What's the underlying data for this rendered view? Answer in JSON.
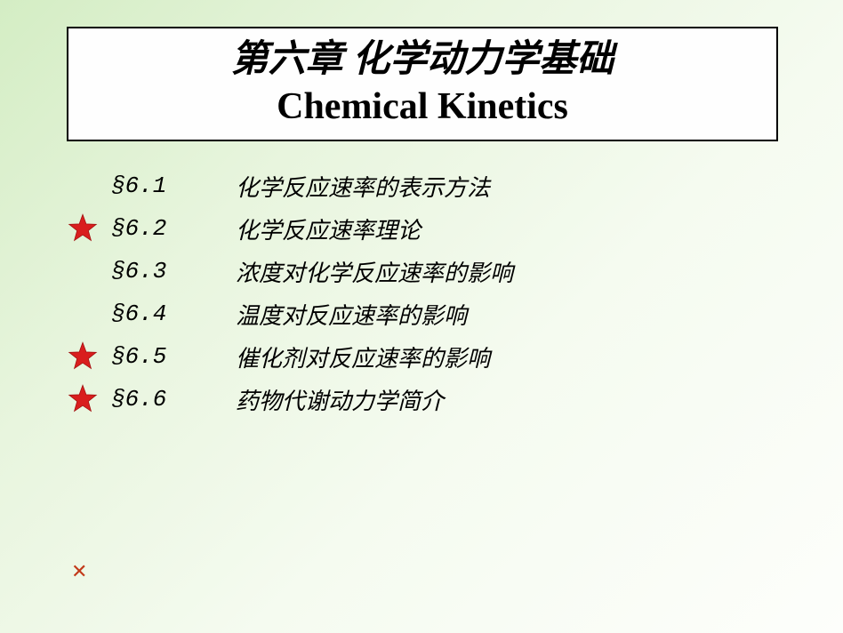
{
  "title": {
    "cn": "第六章  化学动力学基础",
    "en": "Chemical  Kinetics"
  },
  "sections": [
    {
      "num": "§6.1",
      "title": "化学反应速率的表示方法",
      "starred": false
    },
    {
      "num": "§6.2",
      "title": "化学反应速率理论",
      "starred": true
    },
    {
      "num": "§6.3",
      "title": "浓度对化学反应速率的影响",
      "starred": false
    },
    {
      "num": "§6.4",
      "title": "温度对反应速率的影响",
      "starred": false
    },
    {
      "num": "§6.5",
      "title": "催化剂对反应速率的影响",
      "starred": true
    },
    {
      "num": "§6.6",
      "title": "药物代谢动力学简介",
      "starred": true
    }
  ],
  "star_color": "#d91e1e",
  "star_outline": "#a01010",
  "x_mark": "✕",
  "x_color": "#c23a1a"
}
